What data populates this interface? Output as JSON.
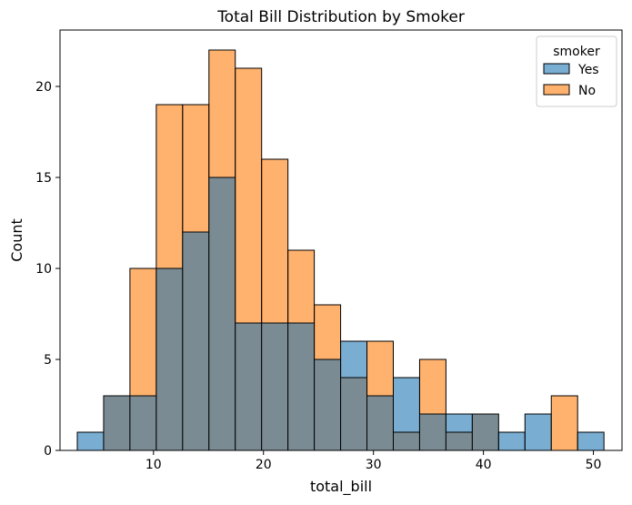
{
  "chart_data": {
    "type": "histogram",
    "title": "Total Bill Distribution by Smoker",
    "xlabel": "total_bill",
    "ylabel": "Count",
    "xlim": [
      1.5,
      52.6
    ],
    "ylim": [
      0,
      23.1
    ],
    "xticks": [
      10,
      20,
      30,
      40,
      50
    ],
    "yticks": [
      0,
      5,
      10,
      15,
      20
    ],
    "bin_start": 3.07,
    "bin_width": 2.3945,
    "bins": 20,
    "grid": false,
    "legend": {
      "title": "smoker",
      "placement": "top-right"
    },
    "series": [
      {
        "name": "Yes",
        "color": "#1f77b4",
        "values": [
          1,
          3,
          3,
          10,
          12,
          15,
          7,
          7,
          7,
          5,
          6,
          3,
          4,
          2,
          2,
          2,
          1,
          2,
          0,
          1
        ]
      },
      {
        "name": "No",
        "color": "#ff7f0e",
        "values": [
          0,
          3,
          10,
          19,
          19,
          22,
          21,
          16,
          11,
          8,
          4,
          6,
          1,
          5,
          1,
          2,
          0,
          0,
          3,
          0
        ]
      }
    ],
    "overlap_color": "#7a8b93"
  }
}
